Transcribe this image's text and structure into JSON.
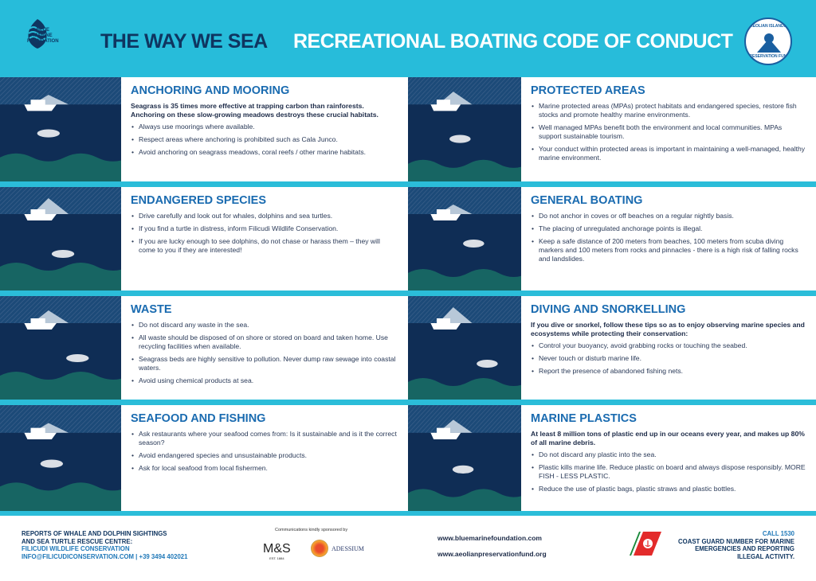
{
  "header": {
    "org_logo_text": "BLUE MARINE\nFOUNDATION",
    "title": "THE WAY WE SEA",
    "subtitle": "RECREATIONAL BOATING CODE OF CONDUCT",
    "fund_logo_top": "AEOLIAN ISLANDS",
    "fund_logo_bottom": "PRESERVATION FUND"
  },
  "colors": {
    "header_bg": "#27bcda",
    "title_blue": "#1a6bb0",
    "navy": "#0f2d55"
  },
  "panels": [
    {
      "title": "ANCHORING AND MOORING",
      "intro": "Seagrass is 35 times more effective at trapping carbon than rainforests. Anchoring on these slow-growing meadows destroys these crucial habitats.",
      "bullets": [
        "Always use moorings where available.",
        "Respect areas where anchoring is prohibited such as Cala Junco.",
        "Avoid anchoring on seagrass meadows, coral reefs / other marine habitats."
      ],
      "icon": "anchor-seagrass-illustration"
    },
    {
      "title": "PROTECTED AREAS",
      "intro": "",
      "bullets": [
        "Marine protected areas (MPAs) protect habitats and endangered species, restore fish stocks and promote healthy marine environments.",
        "Well managed MPAs benefit both the environment and local communities. MPAs support sustainable tourism.",
        "Your conduct within protected areas is important in maintaining a well-managed, healthy marine environment."
      ],
      "icon": "boat-buoys-illustration"
    },
    {
      "title": "ENDANGERED SPECIES",
      "intro": "",
      "bullets": [
        "Drive carefully and look out for whales, dolphins and sea turtles.",
        "If you find a turtle in distress, inform Filicudi Wildlife Conservation.",
        "If you are lucky enough to see dolphins, do not chase or harass them – they will come to you if they are interested!"
      ],
      "icon": "whale-boat-illustration"
    },
    {
      "title": "GENERAL BOATING",
      "intro": "",
      "bullets": [
        "Do not anchor in coves or off beaches on a regular nightly basis.",
        "The placing of unregulated anchorage points is illegal.",
        "Keep a safe distance of 200 meters from beaches, 100 meters from scuba diving markers and 100 meters from rocks and pinnacles - there is a high risk of falling rocks and landslides."
      ],
      "icon": "speedboat-illustration"
    },
    {
      "title": "WASTE",
      "intro": "",
      "bullets": [
        "Do not discard any waste in the sea.",
        "All waste should be disposed of on shore or stored on board and taken home. Use recycling facilities when available.",
        "Seagrass beds are highly sensitive to pollution. Never dump raw sewage into coastal waters.",
        "Avoid using chemical products at sea."
      ],
      "icon": "volcano-boats-illustration"
    },
    {
      "title": "DIVING AND SNORKELLING",
      "intro": "If you dive or snorkel, follow these tips so as to enjoy observing marine species and ecosystems while protecting their conservation:",
      "bullets": [
        "Control your buoyancy, avoid grabbing rocks or touching the seabed.",
        "Never touch or disturb marine life.",
        "Report the presence of abandoned fishing nets."
      ],
      "icon": "diver-illustration"
    },
    {
      "title": "SEAFOOD AND FISHING",
      "intro": "",
      "bullets": [
        "Ask restaurants where your seafood comes from: Is it sustainable and is it the correct season?",
        "Avoid endangered species and unsustainable products.",
        "Ask for local seafood from local fishermen."
      ],
      "icon": "fishing-boat-illustration"
    },
    {
      "title": "MARINE PLASTICS",
      "intro": "At least 8 million tons of plastic end up in our oceans every year, and makes up 80% of all marine debris.",
      "bullets": [
        "Do not discard any plastic into the sea.",
        "Plastic kills marine life. Reduce plastic on board and always dispose responsibly. MORE FISH - LESS PLASTIC.",
        "Reduce the use of plastic bags, plastic straws and plastic bottles."
      ],
      "icon": "plastic-net-illustration"
    }
  ],
  "footer": {
    "report_line1": "REPORTS OF WHALE AND DOLPHIN SIGHTINGS",
    "report_line2": "AND SEA TURTLE RESCUE CENTRE:",
    "report_org": "FILICUDI WILDLIFE CONSERVATION",
    "report_contact": "INFO@FILICUDICONSERVATION.COM | +39 3494 402021",
    "sponsor_label": "Communications kindly sponsored by",
    "sponsor1": "M&S",
    "sponsor1_sub": "EST. 1884",
    "sponsor2": "ADESSIUM",
    "website1": "www.bluemarinefoundation.com",
    "website2": "www.aeolianpreservationfund.org",
    "call": "CALL 1530",
    "coastguard_line1": "COAST GUARD NUMBER FOR MARINE",
    "coastguard_line2": "EMERGENCIES AND REPORTING",
    "coastguard_line3": "ILLEGAL ACTIVITY."
  }
}
